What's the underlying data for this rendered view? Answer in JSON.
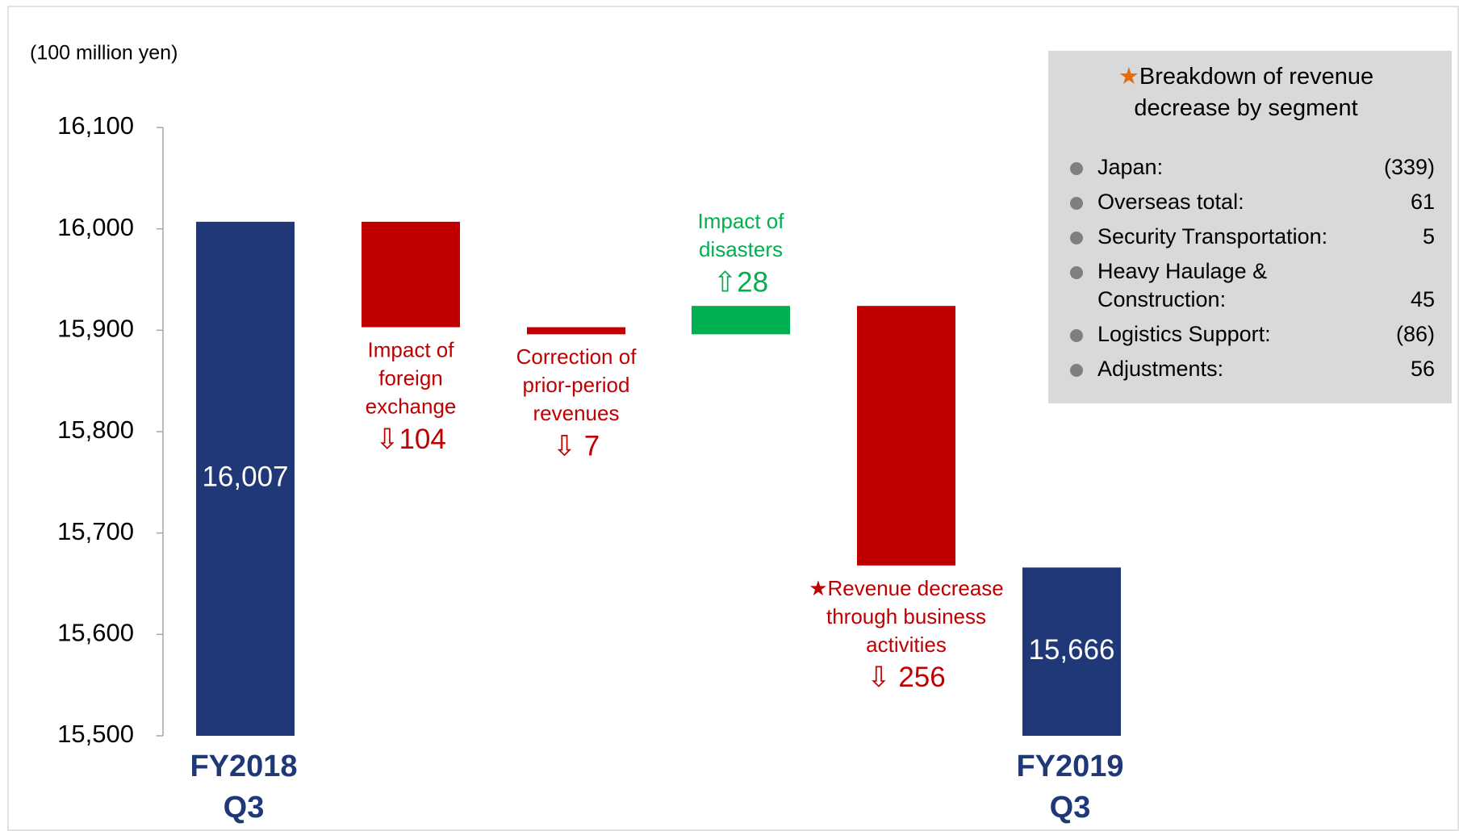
{
  "chart_data": {
    "type": "waterfall",
    "unit_label": "(100 million yen)",
    "categories": [
      [
        "FY2018",
        "Q3"
      ],
      [
        "Impact of",
        "foreign",
        "exchange"
      ],
      [
        "Correction of",
        "prior-period",
        "revenues"
      ],
      [
        "Impact of",
        "disasters"
      ],
      [
        "★Revenue decrease",
        "through business",
        "activities"
      ],
      [
        "FY2019",
        "Q3"
      ]
    ],
    "measures": [
      "total",
      "relative",
      "relative",
      "relative",
      "relative",
      "total"
    ],
    "values": [
      16007,
      -104,
      -7,
      28,
      -256,
      15666
    ],
    "value_labels": [
      "16,007",
      "⇩104",
      "⇩ 7",
      "⇧28",
      "⇩ 256",
      "15,666"
    ],
    "colors": {
      "total": "#203878",
      "decrease": "#c00000",
      "increase": "#00b050"
    },
    "ylim": [
      15500,
      16100
    ],
    "yticks": [
      {
        "value": 15500,
        "label": "15,500"
      },
      {
        "value": 15600,
        "label": "15,600"
      },
      {
        "value": 15700,
        "label": "15,700"
      },
      {
        "value": 15800,
        "label": "15,800"
      },
      {
        "value": 15900,
        "label": "15,900"
      },
      {
        "value": 16000,
        "label": "16,000"
      },
      {
        "value": 16100,
        "label": "16,100"
      }
    ],
    "breakdown": {
      "mark": "★",
      "title": [
        "Breakdown of revenue",
        "decrease by segment"
      ],
      "items": [
        {
          "name": [
            "Japan:"
          ],
          "value": -339,
          "value_label": "(339)"
        },
        {
          "name": [
            "Overseas total:"
          ],
          "value": 61,
          "value_label": "61"
        },
        {
          "name": [
            "Security Transportation:"
          ],
          "value": 5,
          "value_label": "5"
        },
        {
          "name": [
            "Heavy Haulage &",
            "Construction:"
          ],
          "value": 45,
          "value_label": "45"
        },
        {
          "name": [
            "Logistics Support:"
          ],
          "value": -86,
          "value_label": "(86)"
        },
        {
          "name": [
            "Adjustments:"
          ],
          "value": 56,
          "value_label": "56"
        }
      ]
    }
  }
}
